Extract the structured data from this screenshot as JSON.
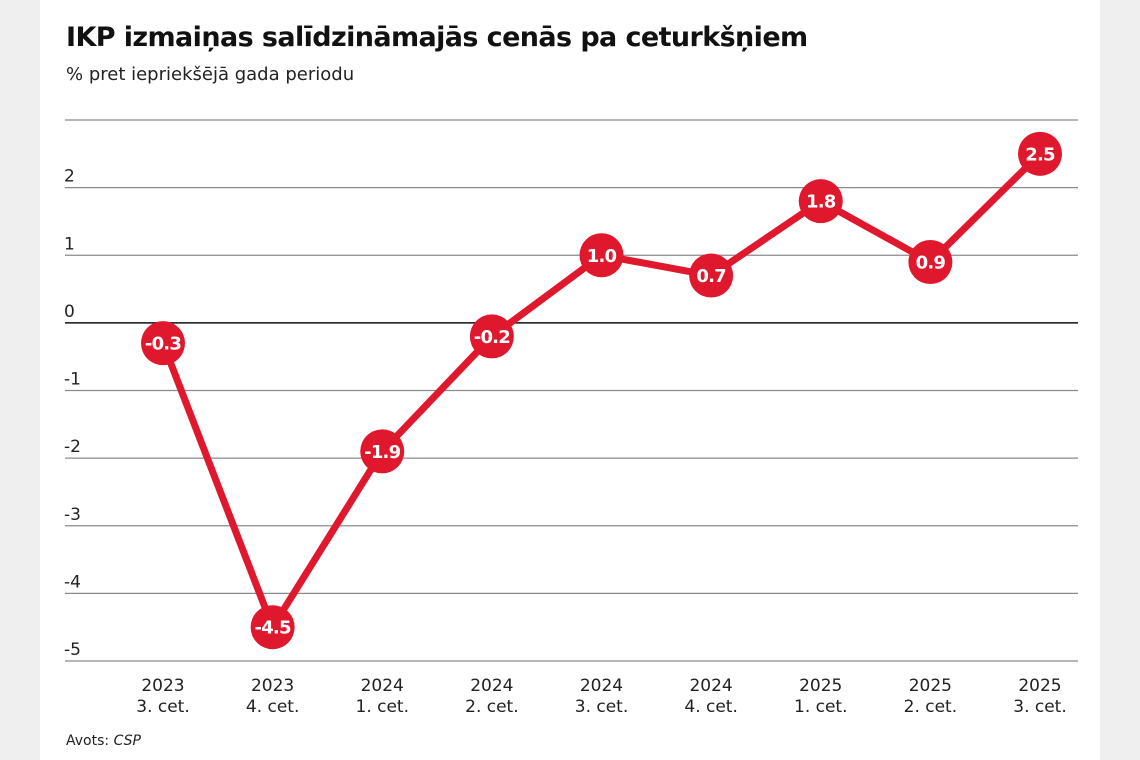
{
  "chart_data": {
    "type": "line",
    "title": "IKP izmaiņas salīdzināmajās cenās pa ceturkšņiem",
    "subtitle": "% pret iepriekšējā gada periodu",
    "source_label": "Avots:",
    "source_name": "CSP",
    "xlabel": "",
    "ylabel": "",
    "ylim": [
      -5,
      3
    ],
    "yticks": [
      2,
      1,
      0,
      -1,
      -2,
      -3,
      -4,
      -5
    ],
    "grid": true,
    "categories": [
      {
        "year": "2023",
        "quarter": "3. cet."
      },
      {
        "year": "2023",
        "quarter": "4. cet."
      },
      {
        "year": "2024",
        "quarter": "1. cet."
      },
      {
        "year": "2024",
        "quarter": "2. cet."
      },
      {
        "year": "2024",
        "quarter": "3. cet."
      },
      {
        "year": "2024",
        "quarter": "4. cet."
      },
      {
        "year": "2025",
        "quarter": "1. cet."
      },
      {
        "year": "2025",
        "quarter": "2. cet."
      },
      {
        "year": "2025",
        "quarter": "3. cet."
      }
    ],
    "series": [
      {
        "name": "IKP izmaiņas",
        "values": [
          -0.3,
          -4.5,
          -1.9,
          -0.2,
          1.0,
          0.7,
          1.8,
          0.9,
          2.5
        ],
        "labels": [
          "-0.3",
          "-4.5",
          "-1.9",
          "-0.2",
          "1.0",
          "0.7",
          "1.8",
          "0.9",
          "2.5"
        ],
        "color": "#e0182d"
      }
    ]
  }
}
